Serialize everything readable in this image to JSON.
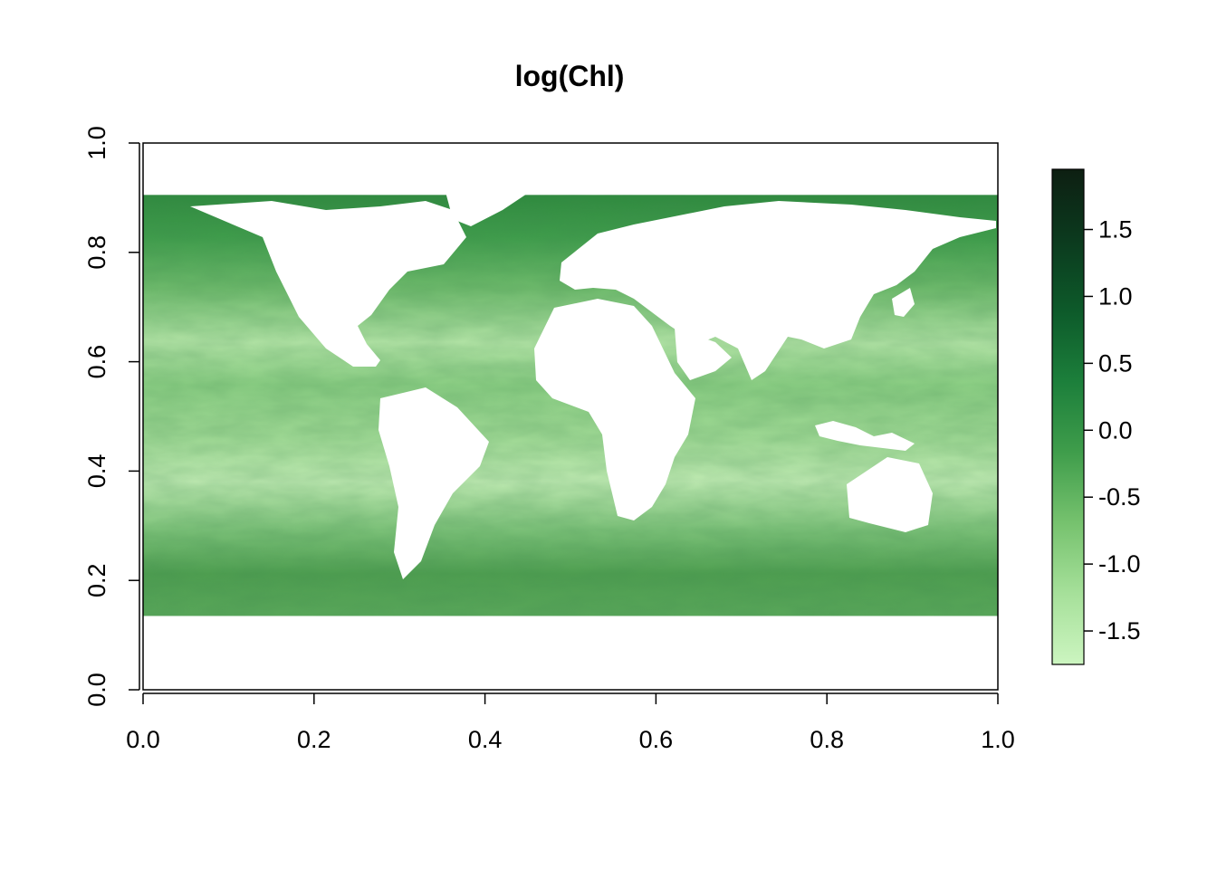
{
  "chart_data": {
    "type": "heatmap",
    "title": "log(Chl)",
    "xlabel": "",
    "ylabel": "",
    "xlim": [
      0.0,
      1.0
    ],
    "ylim": [
      0.0,
      1.0
    ],
    "data_extent": {
      "x": [
        0.0,
        1.0
      ],
      "y": [
        0.135,
        0.905
      ]
    },
    "x_ticks": [
      "0.0",
      "0.2",
      "0.4",
      "0.6",
      "0.8",
      "1.0"
    ],
    "y_ticks": [
      "0.0",
      "0.2",
      "0.4",
      "0.6",
      "0.8",
      "1.0"
    ],
    "colorbar": {
      "range": [
        -1.75,
        1.95
      ],
      "ticks": [
        "-1.5",
        "-1.0",
        "-0.5",
        "0.0",
        "0.5",
        "1.0",
        "1.5"
      ],
      "colors": [
        "#ccf5c0",
        "#a6e09a",
        "#76c26e",
        "#3f9d4b",
        "#1c7f3b",
        "#0d5a2a",
        "#0c3a1e",
        "#0d1f12"
      ],
      "placement": "right"
    },
    "color_scheme": "white-to-dark-green (land drawn as white / missing)",
    "grid": false
  }
}
